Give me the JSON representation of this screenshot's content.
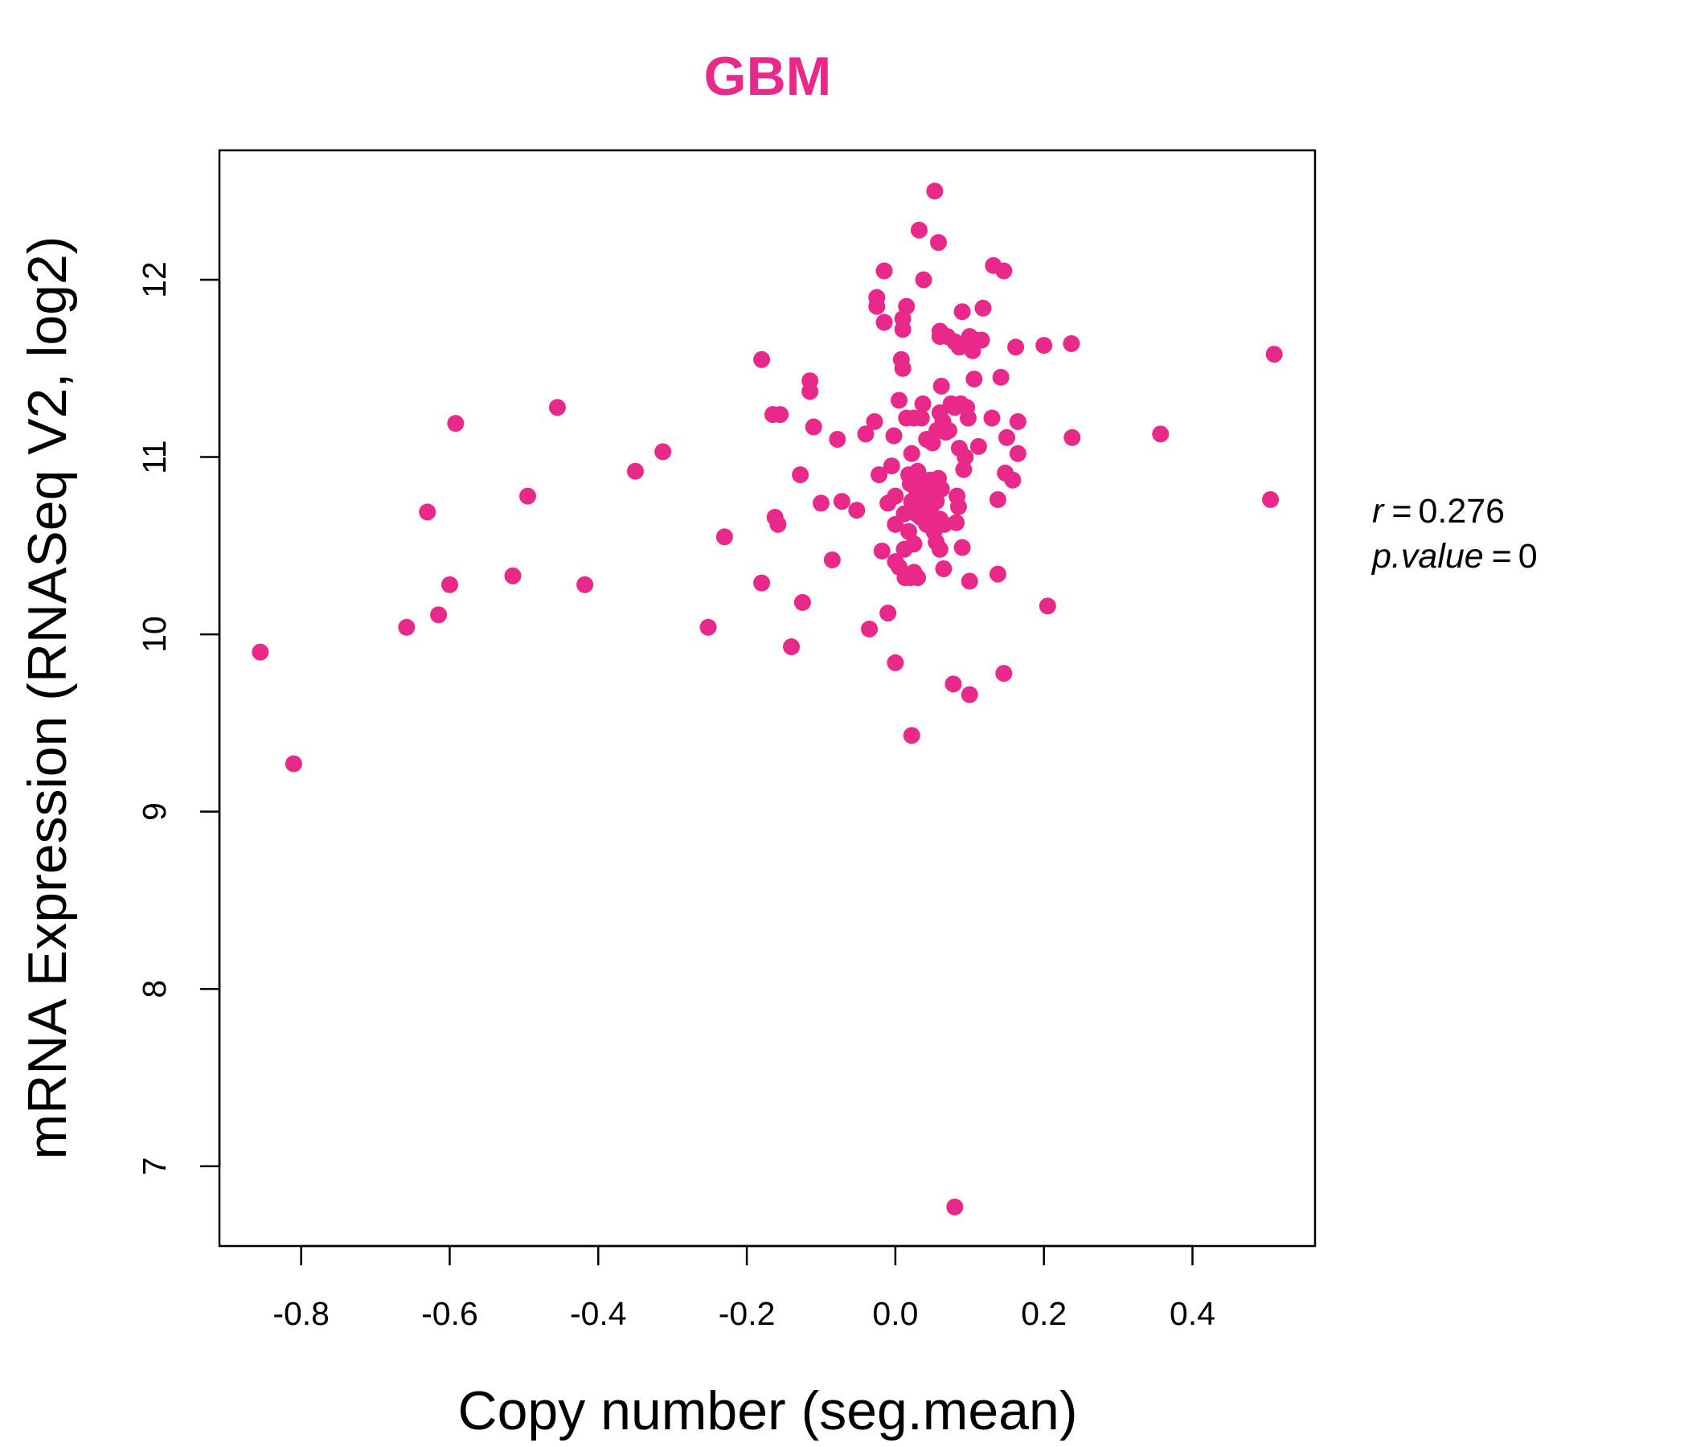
{
  "chart_data": {
    "type": "scatter",
    "title": "GBM",
    "xlabel": "Copy number (seg.mean)",
    "ylabel": "mRNA Expression (RNASeq V2, log2)",
    "xlim": [
      -0.91,
      0.565
    ],
    "ylim": [
      6.55,
      12.73
    ],
    "x_ticks": [
      -0.8,
      -0.6,
      -0.4,
      -0.2,
      0.0,
      0.2,
      0.4
    ],
    "x_tick_labels": [
      "-0.8",
      "-0.6",
      "-0.4",
      "-0.2",
      "0.0",
      "0.2",
      "0.4"
    ],
    "y_ticks": [
      7,
      8,
      9,
      10,
      11,
      12
    ],
    "y_tick_labels": [
      "7",
      "8",
      "9",
      "10",
      "11",
      "12"
    ],
    "grid": false,
    "color": "#E8298A",
    "stats": {
      "r_label": "r",
      "r_value": "0.276",
      "p_label": "p.value",
      "p_value": "0"
    },
    "points": [
      [
        -0.855,
        9.9
      ],
      [
        -0.81,
        9.27
      ],
      [
        -0.658,
        10.04
      ],
      [
        -0.63,
        10.69
      ],
      [
        -0.615,
        10.11
      ],
      [
        -0.6,
        10.28
      ],
      [
        -0.592,
        11.19
      ],
      [
        -0.515,
        10.33
      ],
      [
        -0.495,
        10.78
      ],
      [
        -0.455,
        11.28
      ],
      [
        -0.418,
        10.28
      ],
      [
        -0.35,
        10.92
      ],
      [
        -0.313,
        11.03
      ],
      [
        -0.252,
        10.04
      ],
      [
        -0.23,
        10.55
      ],
      [
        -0.18,
        11.55
      ],
      [
        -0.18,
        10.29
      ],
      [
        -0.165,
        11.24
      ],
      [
        -0.162,
        10.66
      ],
      [
        -0.158,
        10.62
      ],
      [
        -0.155,
        11.24
      ],
      [
        -0.14,
        9.93
      ],
      [
        -0.128,
        10.9
      ],
      [
        -0.125,
        10.18
      ],
      [
        -0.115,
        11.43
      ],
      [
        -0.115,
        11.37
      ],
      [
        -0.11,
        11.17
      ],
      [
        -0.1,
        10.74
      ],
      [
        -0.085,
        10.42
      ],
      [
        -0.078,
        11.1
      ],
      [
        -0.072,
        10.75
      ],
      [
        -0.052,
        10.7
      ],
      [
        -0.04,
        11.13
      ],
      [
        -0.035,
        10.03
      ],
      [
        -0.028,
        11.2
      ],
      [
        -0.025,
        11.9
      ],
      [
        -0.025,
        11.85
      ],
      [
        -0.022,
        10.9
      ],
      [
        -0.018,
        10.47
      ],
      [
        -0.015,
        12.05
      ],
      [
        -0.015,
        11.76
      ],
      [
        -0.01,
        10.74
      ],
      [
        -0.01,
        10.12
      ],
      [
        -0.005,
        10.95
      ],
      [
        -0.002,
        11.12
      ],
      [
        0.0,
        10.78
      ],
      [
        0.0,
        10.62
      ],
      [
        0.0,
        10.41
      ],
      [
        0.0,
        9.84
      ],
      [
        0.005,
        10.38
      ],
      [
        0.005,
        11.32
      ],
      [
        0.008,
        11.55
      ],
      [
        0.01,
        11.78
      ],
      [
        0.01,
        11.72
      ],
      [
        0.01,
        11.5
      ],
      [
        0.012,
        10.68
      ],
      [
        0.012,
        10.48
      ],
      [
        0.013,
        10.32
      ],
      [
        0.015,
        11.85
      ],
      [
        0.015,
        11.22
      ],
      [
        0.018,
        10.9
      ],
      [
        0.018,
        10.58
      ],
      [
        0.02,
        10.85
      ],
      [
        0.02,
        10.32
      ],
      [
        0.022,
        11.02
      ],
      [
        0.022,
        10.75
      ],
      [
        0.022,
        9.43
      ],
      [
        0.025,
        11.22
      ],
      [
        0.025,
        10.51
      ],
      [
        0.025,
        10.35
      ],
      [
        0.028,
        10.82
      ],
      [
        0.028,
        10.68
      ],
      [
        0.03,
        10.92
      ],
      [
        0.03,
        10.73
      ],
      [
        0.03,
        10.32
      ],
      [
        0.032,
        12.28
      ],
      [
        0.032,
        10.8
      ],
      [
        0.034,
        10.66
      ],
      [
        0.035,
        11.22
      ],
      [
        0.035,
        10.88
      ],
      [
        0.037,
        11.3
      ],
      [
        0.038,
        12.0
      ],
      [
        0.038,
        10.76
      ],
      [
        0.04,
        10.85
      ],
      [
        0.04,
        10.7
      ],
      [
        0.042,
        10.62
      ],
      [
        0.042,
        11.1
      ],
      [
        0.045,
        10.82
      ],
      [
        0.045,
        10.75
      ],
      [
        0.046,
        10.68
      ],
      [
        0.048,
        10.87
      ],
      [
        0.048,
        10.72
      ],
      [
        0.05,
        10.8
      ],
      [
        0.05,
        10.65
      ],
      [
        0.05,
        11.08
      ],
      [
        0.052,
        10.58
      ],
      [
        0.053,
        12.5
      ],
      [
        0.055,
        10.75
      ],
      [
        0.055,
        10.52
      ],
      [
        0.056,
        11.15
      ],
      [
        0.058,
        12.21
      ],
      [
        0.058,
        10.88
      ],
      [
        0.06,
        11.71
      ],
      [
        0.06,
        11.68
      ],
      [
        0.06,
        11.25
      ],
      [
        0.06,
        10.65
      ],
      [
        0.06,
        10.48
      ],
      [
        0.062,
        11.4
      ],
      [
        0.062,
        10.82
      ],
      [
        0.064,
        11.2
      ],
      [
        0.065,
        10.37
      ],
      [
        0.066,
        10.62
      ],
      [
        0.068,
        11.14
      ],
      [
        0.07,
        11.68
      ],
      [
        0.072,
        11.15
      ],
      [
        0.075,
        11.3
      ],
      [
        0.078,
        9.72
      ],
      [
        0.08,
        11.65
      ],
      [
        0.08,
        11.28
      ],
      [
        0.08,
        6.77
      ],
      [
        0.082,
        10.63
      ],
      [
        0.083,
        10.78
      ],
      [
        0.085,
        10.72
      ],
      [
        0.086,
        11.62
      ],
      [
        0.086,
        11.05
      ],
      [
        0.088,
        11.3
      ],
      [
        0.09,
        11.82
      ],
      [
        0.09,
        10.49
      ],
      [
        0.092,
        10.93
      ],
      [
        0.094,
        11.0
      ],
      [
        0.096,
        11.28
      ],
      [
        0.098,
        11.65
      ],
      [
        0.098,
        11.22
      ],
      [
        0.1,
        11.68
      ],
      [
        0.1,
        9.66
      ],
      [
        0.1,
        10.3
      ],
      [
        0.104,
        11.6
      ],
      [
        0.106,
        11.44
      ],
      [
        0.108,
        11.66
      ],
      [
        0.112,
        11.06
      ],
      [
        0.116,
        11.66
      ],
      [
        0.118,
        11.84
      ],
      [
        0.13,
        11.22
      ],
      [
        0.132,
        12.08
      ],
      [
        0.138,
        10.76
      ],
      [
        0.138,
        10.34
      ],
      [
        0.142,
        11.45
      ],
      [
        0.146,
        12.05
      ],
      [
        0.146,
        9.78
      ],
      [
        0.148,
        10.91
      ],
      [
        0.15,
        11.11
      ],
      [
        0.158,
        10.87
      ],
      [
        0.162,
        11.62
      ],
      [
        0.165,
        11.2
      ],
      [
        0.165,
        11.02
      ],
      [
        0.2,
        11.63
      ],
      [
        0.205,
        10.16
      ],
      [
        0.237,
        11.64
      ],
      [
        0.238,
        11.11
      ],
      [
        0.357,
        11.13
      ],
      [
        0.505,
        10.76
      ],
      [
        0.51,
        11.58
      ]
    ]
  }
}
